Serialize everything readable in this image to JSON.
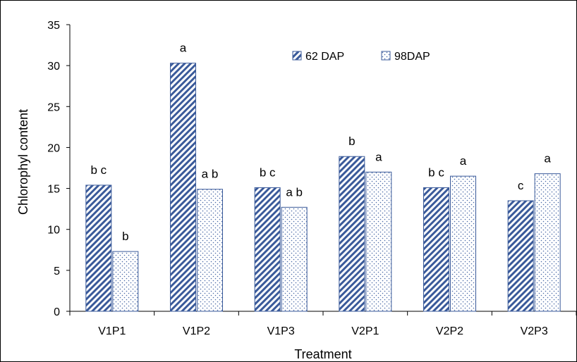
{
  "chart_data": {
    "type": "bar",
    "title": "",
    "xlabel": "Treatment",
    "ylabel": "Chlorophyl content",
    "ylim": [
      0,
      35
    ],
    "yticks": [
      0,
      5,
      10,
      15,
      20,
      25,
      30,
      35
    ],
    "categories": [
      "V1P1",
      "V1P2",
      "V1P3",
      "V2P1",
      "V2P2",
      "V2P3"
    ],
    "series": [
      {
        "name": "62 DAP",
        "values": [
          15.4,
          30.3,
          15.1,
          18.9,
          15.1,
          13.5
        ],
        "labels": [
          "bc",
          "a",
          "bc",
          "b",
          "bc",
          "c"
        ],
        "pattern": "diagonal-hatch",
        "color": "#3a5a9a"
      },
      {
        "name": "98DAP",
        "values": [
          7.3,
          14.9,
          12.7,
          17.0,
          16.5,
          16.8
        ],
        "labels": [
          "b",
          "ab",
          "ab",
          "a",
          "a",
          "a"
        ],
        "pattern": "dots",
        "color": "#3a5a9a"
      }
    ],
    "grid": false,
    "legend_position": "top-right"
  }
}
